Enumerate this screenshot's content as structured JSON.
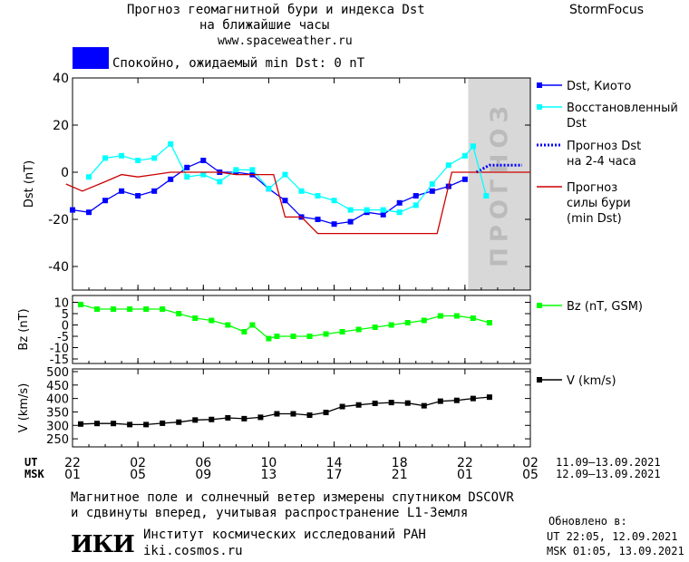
{
  "header": {
    "title_line1": "Прогноз геомагнитной бури и индекса Dst",
    "title_line2": "на ближайшие часы",
    "url": "www.spaceweather.ru",
    "brand": "StormFocus",
    "status_text": "Спокойно, ожидаемый min Dst: 0 nT",
    "status_color": "#0000ff"
  },
  "footer": {
    "note_line1": "Магнитное поле и солнечный ветер измерены спутником DSCOVR",
    "note_line2": "и сдвинуты вперед, учитывая распространение L1-Земля",
    "institute": "Институт космических исследований РАН",
    "institute_url": "iki.cosmos.ru",
    "logo_text": "ИКИ",
    "updated_label": "Обновлено в:",
    "updated_ut": "UT  22:05, 12.09.2021",
    "updated_msk": "MSK 01:05, 13.09.2021"
  },
  "chart_data": [
    {
      "type": "line",
      "ylabel": "Dst (nT)",
      "ylim": [
        -50,
        40
      ],
      "yticks": [
        40,
        20,
        0,
        -20,
        -40
      ],
      "forecast_band_label": "ПРОГНОЗ",
      "series": [
        {
          "name": "Dst, Киото",
          "color": "#0000ff",
          "marker": "square",
          "x": [
            22,
            23,
            24,
            25,
            26,
            27,
            28,
            29,
            30,
            31,
            32,
            33,
            34,
            35,
            36,
            37,
            38,
            39,
            40,
            41,
            42,
            43,
            44,
            45,
            46
          ],
          "y": [
            -16,
            -17,
            -12,
            -8,
            -10,
            -8,
            -3,
            2,
            5,
            0,
            0,
            -1,
            -7,
            -12,
            -19,
            -20,
            -22,
            -21,
            -17,
            -18,
            -13,
            -10,
            -8,
            -6,
            -3
          ]
        },
        {
          "name": "Восстановленный Dst",
          "color": "#00ffff",
          "marker": "square",
          "x": [
            23,
            24,
            25,
            26,
            27,
            28,
            29,
            30,
            31,
            32,
            33,
            34,
            35,
            36,
            37,
            38,
            39,
            40,
            41,
            42,
            43,
            44,
            45,
            46,
            46.5
          ],
          "y": [
            -2,
            6,
            7,
            5,
            6,
            12,
            -2,
            -1,
            -4,
            1,
            1,
            -7,
            -1,
            -8,
            -10,
            -12,
            -16,
            -16,
            -16,
            -17,
            -14,
            -5,
            3,
            7,
            11
          ]
        },
        {
          "name": "Прогноз Dst на 2-4 часа",
          "color": "#0000ff",
          "style": "dotted",
          "x": [
            46.7,
            47.5,
            48.5,
            49.5
          ],
          "y": [
            0,
            3,
            3,
            3
          ]
        },
        {
          "name": "Прогноз силы бури (min Dst)",
          "color": "#cc0000",
          "style": "step",
          "x": [
            21.6,
            22.6,
            24,
            25,
            26,
            27,
            28,
            29,
            30,
            31,
            32,
            34.3,
            35,
            36,
            37,
            38,
            41,
            42,
            43,
            44.3,
            45.2,
            46.3,
            47.5,
            50
          ],
          "y": [
            -5,
            -8,
            -4,
            -1,
            -2,
            -1,
            0,
            0,
            0,
            0,
            -1,
            -1,
            -19,
            -19,
            -26,
            -26,
            -26,
            -26,
            -26,
            -26,
            0,
            0,
            0,
            0
          ]
        },
        {
          "name": "Восстановленный Dst (прогноз)",
          "color": "#00ffff",
          "marker": "square",
          "x": [
            46.5,
            47.3
          ],
          "y": [
            11,
            -10
          ]
        }
      ]
    },
    {
      "type": "line",
      "ylabel": "Bz (nT)",
      "ylim": [
        -17,
        13
      ],
      "yticks": [
        10,
        5,
        0,
        -5,
        -10,
        -15
      ],
      "series": [
        {
          "name": "Bz (nT, GSM)",
          "color": "#00ff00",
          "marker": "square",
          "x": [
            22.5,
            23.5,
            24.5,
            25.5,
            26.5,
            27.5,
            28.5,
            29.5,
            30.5,
            31.5,
            32.5,
            33.0,
            34.0,
            34.5,
            35.5,
            36.5,
            37.5,
            38.5,
            39.5,
            40.5,
            41.5,
            42.5,
            43.5,
            44.5,
            45.5,
            46.5,
            47.5
          ],
          "y": [
            9,
            7,
            7,
            7,
            7,
            7,
            5,
            3,
            2,
            0,
            -3,
            0,
            -6,
            -5,
            -5,
            -5,
            -4,
            -3,
            -2,
            -1,
            0,
            1,
            2,
            4,
            4,
            3,
            1
          ]
        }
      ]
    },
    {
      "type": "line",
      "ylabel": "V (km/s)",
      "ylim": [
        220,
        510
      ],
      "yticks": [
        500,
        450,
        400,
        350,
        300,
        250
      ],
      "series": [
        {
          "name": "V (km/s)",
          "color": "#000000",
          "marker": "square",
          "x": [
            22.5,
            23.5,
            24.5,
            25.5,
            26.5,
            27.5,
            28.5,
            29.5,
            30.5,
            31.5,
            32.5,
            33.5,
            34.5,
            35.5,
            36.5,
            37.5,
            38.5,
            39.5,
            40.5,
            41.5,
            42.5,
            43.5,
            44.5,
            45.5,
            46.5,
            47.5
          ],
          "y": [
            305,
            307,
            307,
            303,
            303,
            308,
            312,
            320,
            322,
            328,
            325,
            330,
            343,
            343,
            338,
            348,
            370,
            376,
            382,
            385,
            383,
            373,
            390,
            393,
            400,
            405
          ]
        }
      ]
    }
  ],
  "axis": {
    "x_range": [
      22,
      50
    ],
    "x_ticks": [
      22,
      26,
      30,
      34,
      38,
      42,
      46,
      50
    ],
    "ut_labels": [
      "22",
      "02",
      "06",
      "10",
      "14",
      "18",
      "22",
      "02"
    ],
    "msk_labels": [
      "01",
      "05",
      "09",
      "13",
      "17",
      "21",
      "01",
      "05"
    ],
    "ut_label": "UT",
    "msk_label": "MSK",
    "ut_dates": "11.09–13.09.2021",
    "msk_dates": "12.09–13.09.2021",
    "forecast_start_x": 46.2
  }
}
